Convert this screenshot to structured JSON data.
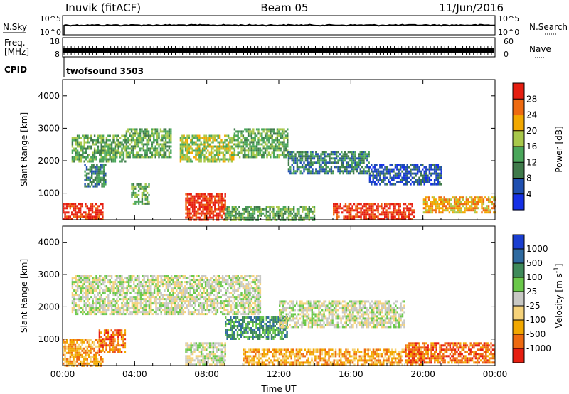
{
  "header": {
    "title": "Inuvik (fitACF)",
    "beam": "Beam 05",
    "date": "11/Jun/2016"
  },
  "summary": {
    "nsky_label": "N.Sky",
    "nsearch_label": "N.Search",
    "freq_label": "Freq.",
    "freq_unit": "[MHz]",
    "nave_label": "Nave",
    "cpid_label": "CPID",
    "cpid_value": "twofsound 3503",
    "noise_ticks_left": [
      "10^5",
      "10^0"
    ],
    "noise_ticks_right": [
      "10^5",
      "10^0"
    ],
    "freq_ticks": [
      "18",
      "8"
    ],
    "nave_ticks": [
      "60",
      "0"
    ]
  },
  "chart_data": [
    {
      "type": "heatmap",
      "name": "power",
      "ylabel": "Slant Range [km]",
      "xlabel": "",
      "y_ticks": [
        1000,
        2000,
        3000,
        4000
      ],
      "ylim": [
        180,
        4500
      ],
      "x_ticks": [
        "00:00",
        "04:00",
        "08:00",
        "12:00",
        "16:00",
        "20:00",
        "00:00"
      ],
      "xlim_hours": [
        0,
        24
      ],
      "colorbar": {
        "label": "Power [dB]",
        "ticks": [
          "4",
          "8",
          "12",
          "16",
          "20",
          "24",
          "28"
        ],
        "colors": [
          "#1530e6",
          "#1f4fb0",
          "#3f7a4a",
          "#4aa65a",
          "#a8c84a",
          "#f2a800",
          "#ee6a10",
          "#e61e10"
        ]
      },
      "regions": [
        {
          "t0": 0.0,
          "t1": 2.2,
          "r0": 200,
          "r1": 700,
          "level": 7
        },
        {
          "t0": 0.5,
          "t1": 3.5,
          "r0": 2000,
          "r1": 2800,
          "level": 3
        },
        {
          "t0": 1.2,
          "t1": 2.4,
          "r0": 1200,
          "r1": 1900,
          "level": 2
        },
        {
          "t0": 3.8,
          "t1": 4.8,
          "r0": 700,
          "r1": 1300,
          "level": 3
        },
        {
          "t0": 3.5,
          "t1": 6.0,
          "r0": 2100,
          "r1": 3000,
          "level": 3
        },
        {
          "t0": 6.8,
          "t1": 9.0,
          "r0": 200,
          "r1": 1000,
          "level": 7
        },
        {
          "t0": 6.5,
          "t1": 9.5,
          "r0": 2000,
          "r1": 2800,
          "level": 4
        },
        {
          "t0": 9.0,
          "t1": 14.0,
          "r0": 200,
          "r1": 600,
          "level": 3
        },
        {
          "t0": 9.5,
          "t1": 12.5,
          "r0": 2100,
          "r1": 3000,
          "level": 3
        },
        {
          "t0": 12.5,
          "t1": 17.0,
          "r0": 1600,
          "r1": 2300,
          "level": 2
        },
        {
          "t0": 15.0,
          "t1": 19.5,
          "r0": 200,
          "r1": 700,
          "level": 7
        },
        {
          "t0": 17.0,
          "t1": 21.0,
          "r0": 1300,
          "r1": 1900,
          "level": 1
        },
        {
          "t0": 20.0,
          "t1": 24.0,
          "r0": 400,
          "r1": 900,
          "level": 5
        }
      ]
    },
    {
      "type": "heatmap",
      "name": "velocity",
      "ylabel": "Slant Range [km]",
      "xlabel": "Time UT",
      "y_ticks": [
        1000,
        2000,
        3000,
        4000
      ],
      "ylim": [
        180,
        4500
      ],
      "x_ticks": [
        "00:00",
        "04:00",
        "08:00",
        "12:00",
        "16:00",
        "20:00",
        "00:00"
      ],
      "xlim_hours": [
        0,
        24
      ],
      "colorbar": {
        "label": "Velocity [m s",
        "label_sup": "-1",
        "label_end": "]",
        "ticks": [
          "-1000",
          "-500",
          "-100",
          "-25",
          "25",
          "100",
          "500",
          "1000"
        ],
        "colors": [
          "#e61e10",
          "#ee6a10",
          "#f2a800",
          "#f5d27a",
          "#c8c8c4",
          "#6ac84a",
          "#3f8a5a",
          "#2f6aa0",
          "#1a3ed0"
        ]
      },
      "regions": [
        {
          "t0": 0.0,
          "t1": 2.2,
          "r0": 200,
          "r1": 1000,
          "level": 2
        },
        {
          "t0": 0.5,
          "t1": 11.0,
          "r0": 1800,
          "r1": 3000,
          "level": 4
        },
        {
          "t0": 2.0,
          "t1": 3.5,
          "r0": 600,
          "r1": 1300,
          "level": 1
        },
        {
          "t0": 6.8,
          "t1": 9.0,
          "r0": 200,
          "r1": 900,
          "level": 4
        },
        {
          "t0": 9.0,
          "t1": 12.5,
          "r0": 1000,
          "r1": 1700,
          "level": 6
        },
        {
          "t0": 12.0,
          "t1": 19.0,
          "r0": 1400,
          "r1": 2200,
          "level": 4
        },
        {
          "t0": 10.0,
          "t1": 20.0,
          "r0": 200,
          "r1": 700,
          "level": 2
        },
        {
          "t0": 19.0,
          "t1": 24.0,
          "r0": 300,
          "r1": 900,
          "level": 1
        }
      ]
    }
  ]
}
